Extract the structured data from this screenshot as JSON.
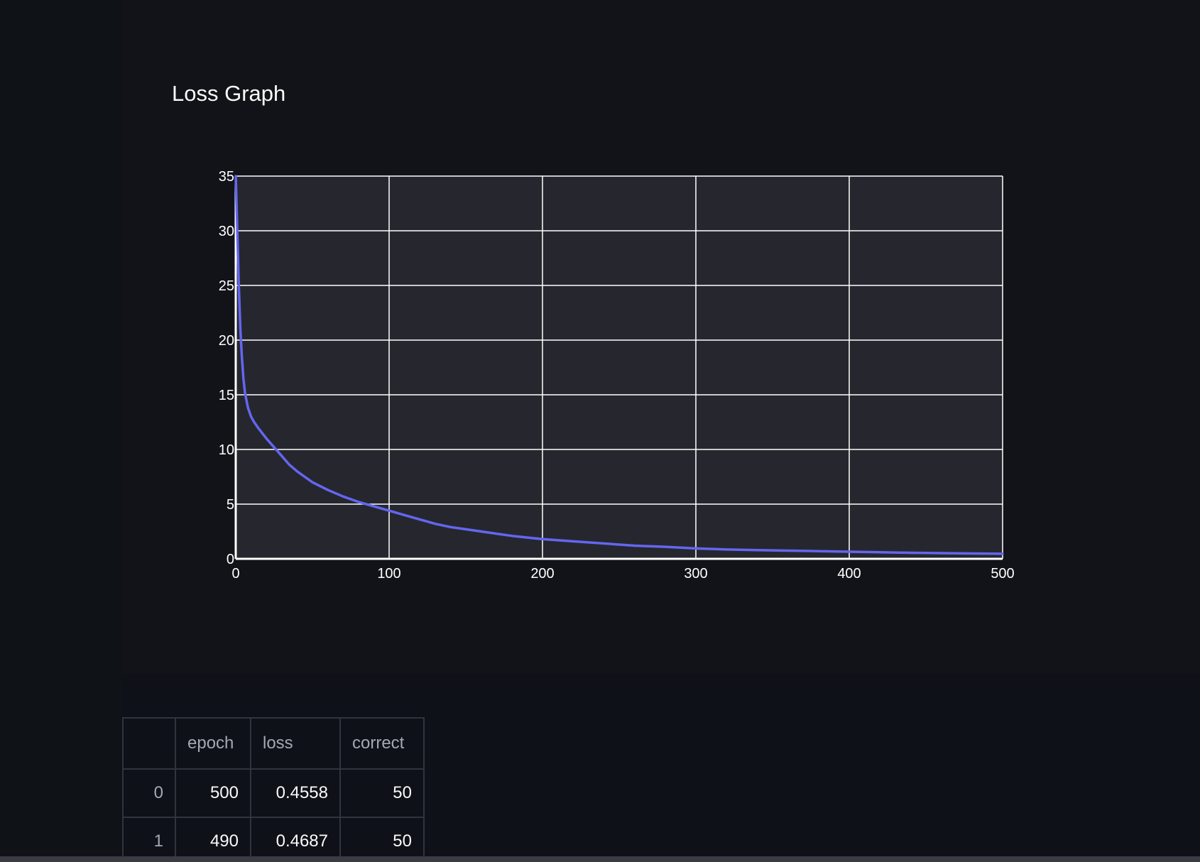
{
  "title": "Loss Graph",
  "chart_data": {
    "type": "line",
    "title": "Loss Graph",
    "xlabel": "",
    "ylabel": "",
    "xlim": [
      0,
      500
    ],
    "ylim": [
      0,
      35
    ],
    "x_ticks": [
      0,
      100,
      200,
      300,
      400,
      500
    ],
    "y_ticks": [
      0,
      5,
      10,
      15,
      20,
      25,
      30,
      35
    ],
    "grid": true,
    "background": "#26272e",
    "line_color": "#6466f1",
    "series": [
      {
        "x": [
          0,
          1,
          2,
          3,
          4,
          5,
          6,
          7,
          8,
          10,
          12,
          15,
          20,
          25,
          30,
          35,
          40,
          45,
          50,
          60,
          70,
          80,
          90,
          100,
          110,
          120,
          125,
          130,
          140,
          150,
          160,
          170,
          180,
          200,
          220,
          240,
          260,
          280,
          300,
          320,
          340,
          360,
          380,
          400,
          420,
          440,
          460,
          480,
          500
        ],
        "y": [
          35.0,
          30.0,
          25.0,
          21.0,
          18.5,
          16.5,
          15.2,
          14.5,
          13.8,
          13.0,
          12.5,
          11.9,
          11.0,
          10.2,
          9.4,
          8.6,
          8.0,
          7.5,
          7.0,
          6.3,
          5.7,
          5.2,
          4.8,
          4.4,
          4.0,
          3.6,
          3.4,
          3.2,
          2.9,
          2.7,
          2.5,
          2.3,
          2.1,
          1.8,
          1.6,
          1.4,
          1.2,
          1.1,
          0.95,
          0.85,
          0.8,
          0.75,
          0.7,
          0.65,
          0.6,
          0.55,
          0.52,
          0.49,
          0.46
        ]
      }
    ]
  },
  "table": {
    "headers": [
      "",
      "epoch",
      "loss",
      "correct"
    ],
    "rows": [
      [
        "0",
        "500",
        "0.4558",
        "50"
      ],
      [
        "1",
        "490",
        "0.4687",
        "50"
      ]
    ]
  }
}
